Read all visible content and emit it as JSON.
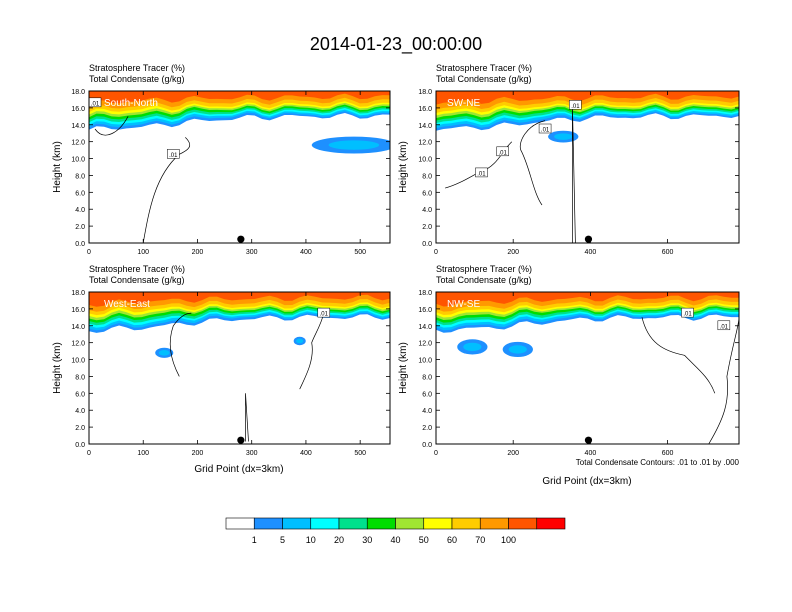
{
  "figure": {
    "title": "2014-01-23_00:00:00",
    "contour_note": "Total Condensate Contours: .01 to .01 by .000"
  },
  "panels": [
    {
      "id": "south-north",
      "label": "South-North",
      "subtitle_1": "Stratosphere Tracer   (%)",
      "subtitle_2": "Total Condensate   (g/kg)",
      "ylabel": "Height (km)",
      "xlabel": "",
      "xmax": 555,
      "xticks": [
        "0",
        "100",
        "200",
        "300",
        "400",
        "500"
      ],
      "xtick_values": [
        0,
        100,
        200,
        300,
        400,
        500
      ],
      "marker_x": 280,
      "contour_labels": [
        ".01",
        ".01"
      ]
    },
    {
      "id": "sw-ne",
      "label": "SW-NE",
      "subtitle_1": "Stratosphere Tracer   (%)",
      "subtitle_2": "Total Condensate   (g/kg)",
      "ylabel": "Height (km)",
      "xlabel": "",
      "xmax": 785,
      "xticks": [
        "0",
        "200",
        "400",
        "600"
      ],
      "xtick_values": [
        0,
        200,
        400,
        600
      ],
      "marker_x": 395,
      "contour_labels": [
        ".01",
        ".01",
        ".01",
        ".01"
      ]
    },
    {
      "id": "west-east",
      "label": "West-East",
      "subtitle_1": "Stratosphere Tracer   (%)",
      "subtitle_2": "Total Condensate   (g/kg)",
      "ylabel": "Height (km)",
      "xlabel": "Grid Point (dx=3km)",
      "xmax": 555,
      "xticks": [
        "0",
        "100",
        "200",
        "300",
        "400",
        "500"
      ],
      "xtick_values": [
        0,
        100,
        200,
        300,
        400,
        500
      ],
      "marker_x": 280,
      "contour_labels": [
        ".01"
      ]
    },
    {
      "id": "nw-se",
      "label": "NW-SE",
      "subtitle_1": "Stratosphere Tracer   (%)",
      "subtitle_2": "Total Condensate   (g/kg)",
      "ylabel": "Height (km)",
      "xlabel": "Grid Point (dx=3km)",
      "xmax": 785,
      "xticks": [
        "0",
        "200",
        "400",
        "600"
      ],
      "xtick_values": [
        0,
        200,
        400,
        600
      ],
      "marker_x": 395,
      "contour_labels": [
        ".01",
        ".01"
      ]
    }
  ],
  "chart_data": {
    "type": "heatmap",
    "title": "2014-01-23_00:00:00",
    "ylabel": "Height (km)",
    "xlabel": "Grid Point (dx=3km)",
    "ylim": [
      0,
      18
    ],
    "yticks": [
      "0.0",
      "2.0",
      "4.0",
      "6.0",
      "8.0",
      "10.0",
      "12.0",
      "14.0",
      "16.0",
      "18.0"
    ],
    "ytick_values": [
      0,
      2,
      4,
      6,
      8,
      10,
      12,
      14,
      16,
      18
    ],
    "variables": [
      "Stratosphere Tracer (%)",
      "Total Condensate (g/kg)"
    ],
    "colorbar": {
      "labels": [
        "1",
        "5",
        "10",
        "20",
        "30",
        "40",
        "50",
        "60",
        "70",
        "100"
      ],
      "colors": [
        "#ffffff",
        "#1e90ff",
        "#00bfff",
        "#00ffff",
        "#00e08c",
        "#00dd00",
        "#a0e632",
        "#ffff00",
        "#ffcc00",
        "#ff9900",
        "#ff5500",
        "#ff0000"
      ]
    },
    "layers": [
      {
        "level": 1,
        "bottom": [
          [
            0,
            13.4
          ],
          [
            0.08,
            13.6
          ],
          [
            0.2,
            13.8
          ],
          [
            0.35,
            14.4
          ],
          [
            0.5,
            14.8
          ],
          [
            0.7,
            15.0
          ],
          [
            0.85,
            15.0
          ],
          [
            1,
            15.1
          ]
        ]
      },
      {
        "level": 5,
        "bottom": [
          [
            0,
            13.7
          ],
          [
            0.08,
            13.9
          ],
          [
            0.2,
            14.1
          ],
          [
            0.35,
            14.7
          ],
          [
            0.5,
            15.1
          ],
          [
            0.7,
            15.2
          ],
          [
            0.85,
            15.2
          ],
          [
            1,
            15.3
          ]
        ]
      },
      {
        "level": 10,
        "bottom": [
          [
            0,
            14.0
          ],
          [
            0.08,
            14.2
          ],
          [
            0.2,
            14.4
          ],
          [
            0.35,
            15.0
          ],
          [
            0.5,
            15.3
          ],
          [
            0.7,
            15.4
          ],
          [
            0.85,
            15.4
          ],
          [
            1,
            15.5
          ]
        ]
      },
      {
        "level": 20,
        "bottom": [
          [
            0,
            14.3
          ],
          [
            0.08,
            14.5
          ],
          [
            0.2,
            14.7
          ],
          [
            0.35,
            15.2
          ],
          [
            0.5,
            15.5
          ],
          [
            0.7,
            15.6
          ],
          [
            0.85,
            15.6
          ],
          [
            1,
            15.7
          ]
        ]
      },
      {
        "level": 30,
        "bottom": [
          [
            0,
            14.6
          ],
          [
            0.08,
            14.8
          ],
          [
            0.2,
            15.0
          ],
          [
            0.35,
            15.5
          ],
          [
            0.5,
            15.7
          ],
          [
            0.7,
            15.8
          ],
          [
            0.85,
            15.8
          ],
          [
            1,
            15.9
          ]
        ]
      },
      {
        "level": 40,
        "bottom": [
          [
            0,
            14.9
          ],
          [
            0.08,
            15.1
          ],
          [
            0.2,
            15.3
          ],
          [
            0.35,
            15.8
          ],
          [
            0.5,
            15.9
          ],
          [
            0.7,
            16.0
          ],
          [
            0.85,
            16.0
          ],
          [
            1,
            16.1
          ]
        ]
      },
      {
        "level": 50,
        "bottom": [
          [
            0,
            15.2
          ],
          [
            0.08,
            15.4
          ],
          [
            0.2,
            15.6
          ],
          [
            0.35,
            16.0
          ],
          [
            0.5,
            16.1
          ],
          [
            0.7,
            16.2
          ],
          [
            0.85,
            16.2
          ],
          [
            1,
            16.3
          ]
        ]
      },
      {
        "level": 60,
        "bottom": [
          [
            0,
            15.5
          ],
          [
            0.08,
            15.7
          ],
          [
            0.2,
            15.9
          ],
          [
            0.35,
            16.2
          ],
          [
            0.5,
            16.3
          ],
          [
            0.7,
            16.4
          ],
          [
            0.85,
            16.4
          ],
          [
            1,
            16.5
          ]
        ]
      },
      {
        "level": 70,
        "bottom": [
          [
            0,
            15.9
          ],
          [
            0.08,
            16.1
          ],
          [
            0.2,
            16.3
          ],
          [
            0.35,
            16.6
          ],
          [
            0.5,
            16.7
          ],
          [
            0.7,
            16.8
          ],
          [
            0.85,
            16.8
          ],
          [
            1,
            16.9
          ]
        ]
      },
      {
        "level": 100,
        "bottom": [
          [
            0,
            16.5
          ],
          [
            0.08,
            16.7
          ],
          [
            0.2,
            16.9
          ],
          [
            0.35,
            17.1
          ],
          [
            0.5,
            17.2
          ],
          [
            0.7,
            17.3
          ],
          [
            0.85,
            17.3
          ],
          [
            1,
            17.4
          ]
        ]
      }
    ],
    "grid": false
  },
  "colors": {
    "axis": "#000000",
    "marker": "#000000"
  }
}
